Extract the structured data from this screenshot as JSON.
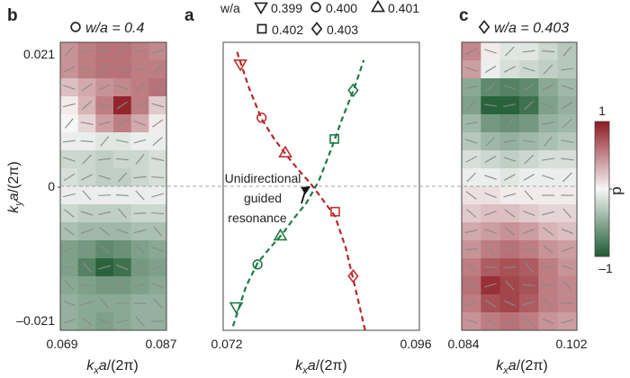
{
  "chart_data": [
    {
      "panel": "a",
      "type": "scatter",
      "xlabel": "kxa/(2π)",
      "xlim": [
        0.072,
        0.096
      ],
      "ylim": [
        -0.021,
        0.021
      ],
      "x_ticks": [
        "0.072",
        "0.096"
      ],
      "legend_title": "w/a",
      "legend_placement": "top",
      "series": [
        {
          "name": "0.399",
          "marker": "triangle-down",
          "points": [
            {
              "x": 0.0741,
              "y": 0.0178,
              "band": "red"
            },
            {
              "x": 0.0736,
              "y": -0.0176,
              "band": "green"
            }
          ]
        },
        {
          "name": "0.400",
          "marker": "circle",
          "points": [
            {
              "x": 0.0767,
              "y": 0.01,
              "band": "red"
            },
            {
              "x": 0.0762,
              "y": -0.0114,
              "band": "green"
            }
          ]
        },
        {
          "name": "0.401",
          "marker": "triangle-up",
          "points": [
            {
              "x": 0.0796,
              "y": 0.0049,
              "band": "red"
            },
            {
              "x": 0.079,
              "y": -0.0072,
              "band": "green"
            }
          ]
        },
        {
          "name": "0.402",
          "marker": "square",
          "points": [
            {
              "x": 0.0856,
              "y": 0.0069,
              "band": "green"
            },
            {
              "x": 0.0857,
              "y": -0.0037,
              "band": "red"
            }
          ]
        },
        {
          "name": "0.403",
          "marker": "diamond",
          "points": [
            {
              "x": 0.0879,
              "y": 0.014,
              "band": "green"
            },
            {
              "x": 0.0879,
              "y": -0.0131,
              "band": "red"
            }
          ]
        }
      ],
      "curves": [
        {
          "color": "#b22a2a",
          "points": [
            [
              0.0737,
              0.0196
            ],
            [
              0.0752,
              0.0142
            ],
            [
              0.0767,
              0.0098
            ],
            [
              0.0782,
              0.007
            ],
            [
              0.0797,
              0.0046
            ],
            [
              0.0812,
              0.0024
            ],
            [
              0.0827,
              0.0004
            ],
            [
              0.0842,
              -0.002
            ],
            [
              0.0857,
              -0.0044
            ],
            [
              0.087,
              -0.009
            ],
            [
              0.0882,
              -0.015
            ],
            [
              0.0894,
              -0.0212
            ]
          ]
        },
        {
          "color": "#1f7a45",
          "points": [
            [
              0.0732,
              -0.0204
            ],
            [
              0.0748,
              -0.0146
            ],
            [
              0.0762,
              -0.0112
            ],
            [
              0.0777,
              -0.009
            ],
            [
              0.0792,
              -0.007
            ],
            [
              0.0807,
              -0.0046
            ],
            [
              0.0822,
              -0.0024
            ],
            [
              0.0837,
              0.0008
            ],
            [
              0.0852,
              0.0054
            ],
            [
              0.0866,
              0.01
            ],
            [
              0.088,
              0.0142
            ],
            [
              0.0892,
              0.0184
            ]
          ]
        }
      ],
      "annotation": {
        "lines": [
          "Unidirectional",
          "guided",
          "resonance"
        ],
        "target_x": 0.0827,
        "target_y": 0.0
      }
    },
    {
      "panel": "b",
      "type": "heatmap",
      "title": "w/a = 0.4",
      "title_marker": "circle",
      "xlabel": "kxa/(2π)",
      "ylabel": "kya/(2π)",
      "xlim": [
        0.069,
        0.087
      ],
      "ylim": [
        -0.021,
        0.021
      ],
      "x_ticks": [
        "0.069",
        "0.087"
      ],
      "y_ticks": [
        "0.021",
        "0",
        "–0.021"
      ],
      "grid_cols": 6,
      "grid_rows": 16,
      "values": [
        [
          0.45,
          0.55,
          0.6,
          0.6,
          0.55,
          0.5
        ],
        [
          0.45,
          0.55,
          0.6,
          0.6,
          0.55,
          0.55
        ],
        [
          0.25,
          0.35,
          0.45,
          0.5,
          0.55,
          0.6
        ],
        [
          0.05,
          0.3,
          0.55,
          0.95,
          0.55,
          0.2
        ],
        [
          0.0,
          0.15,
          0.4,
          0.55,
          0.35,
          0.05
        ],
        [
          -0.05,
          -0.05,
          -0.1,
          -0.1,
          -0.05,
          -0.05
        ],
        [
          -0.2,
          -0.2,
          -0.25,
          -0.2,
          -0.2,
          -0.15
        ],
        [
          -0.15,
          -0.2,
          -0.25,
          -0.25,
          -0.2,
          -0.15
        ],
        [
          -0.05,
          -0.05,
          -0.05,
          -0.05,
          -0.05,
          -0.05
        ],
        [
          -0.2,
          -0.25,
          -0.25,
          -0.25,
          -0.2,
          -0.2
        ],
        [
          -0.35,
          -0.4,
          -0.4,
          -0.4,
          -0.35,
          -0.35
        ],
        [
          -0.55,
          -0.6,
          -0.7,
          -0.65,
          -0.55,
          -0.5
        ],
        [
          -0.55,
          -0.75,
          -0.95,
          -0.85,
          -0.6,
          -0.55
        ],
        [
          -0.5,
          -0.55,
          -0.6,
          -0.6,
          -0.55,
          -0.5
        ],
        [
          -0.45,
          -0.5,
          -0.5,
          -0.5,
          -0.45,
          -0.45
        ],
        [
          -0.45,
          -0.5,
          -0.55,
          -0.5,
          -0.45,
          -0.45
        ]
      ],
      "color_range": [
        -1,
        1
      ],
      "colors": {
        "negative": "#1e5b32",
        "zero": "#f6f6f6",
        "positive": "#8e1a22"
      }
    },
    {
      "panel": "c",
      "type": "heatmap",
      "title": "w/a = 0.403",
      "title_marker": "diamond",
      "xlabel": "kxa/(2π)",
      "xlim": [
        0.084,
        0.102
      ],
      "ylim": [
        -0.021,
        0.021
      ],
      "x_ticks": [
        "0.084",
        "0.102"
      ],
      "grid_cols": 6,
      "grid_rows": 16,
      "values": [
        [
          0.5,
          0.05,
          -0.1,
          -0.1,
          -0.2,
          -0.3
        ],
        [
          0.4,
          -0.05,
          -0.15,
          -0.2,
          -0.25,
          -0.3
        ],
        [
          -0.5,
          -0.7,
          -0.75,
          -0.7,
          -0.5,
          -0.4
        ],
        [
          -0.55,
          -0.95,
          -0.95,
          -0.85,
          -0.55,
          -0.45
        ],
        [
          -0.4,
          -0.6,
          -0.65,
          -0.6,
          -0.45,
          -0.4
        ],
        [
          -0.3,
          -0.4,
          -0.45,
          -0.4,
          -0.35,
          -0.3
        ],
        [
          -0.15,
          -0.2,
          -0.25,
          -0.2,
          -0.15,
          -0.15
        ],
        [
          -0.05,
          -0.05,
          -0.1,
          -0.05,
          -0.05,
          -0.05
        ],
        [
          0.1,
          0.1,
          0.05,
          0.05,
          0.05,
          0.05
        ],
        [
          0.2,
          0.25,
          0.25,
          0.2,
          0.15,
          0.15
        ],
        [
          0.35,
          0.4,
          0.45,
          0.4,
          0.3,
          0.25
        ],
        [
          0.45,
          0.55,
          0.6,
          0.55,
          0.45,
          0.4
        ],
        [
          0.55,
          0.7,
          0.75,
          0.7,
          0.55,
          0.45
        ],
        [
          0.6,
          0.9,
          0.8,
          0.75,
          0.55,
          0.5
        ],
        [
          0.55,
          0.75,
          0.8,
          0.7,
          0.55,
          0.5
        ],
        [
          0.45,
          0.55,
          0.6,
          0.55,
          0.45,
          0.4
        ]
      ],
      "color_range": [
        -1,
        1
      ],
      "colorbar": {
        "label": "p",
        "ticks": [
          "1",
          "0",
          "–1"
        ]
      },
      "colors": {
        "negative": "#1e5b32",
        "zero": "#f6f6f6",
        "positive": "#8e1a22"
      }
    }
  ]
}
